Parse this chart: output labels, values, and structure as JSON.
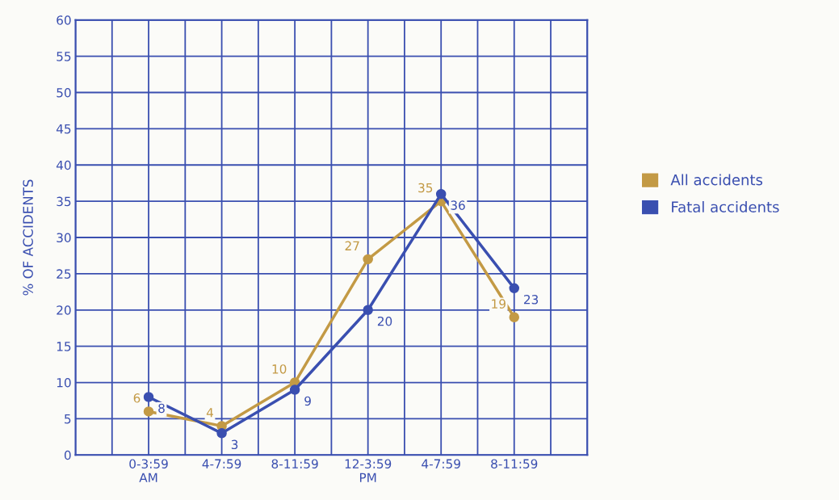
{
  "chart_data": {
    "type": "line",
    "ylabel": "% OF ACCIDENTS",
    "categories": [
      "0-3:59\nAM",
      "4-7:59",
      "8-11:59",
      "12-3:59\nPM",
      "4-7:59",
      "8-11:59"
    ],
    "series": [
      {
        "name": "All accidents",
        "color": "#c39a45",
        "values": [
          6,
          4,
          10,
          27,
          35,
          19
        ]
      },
      {
        "name": "Fatal accidents",
        "color": "#3a4fb0",
        "values": [
          8,
          3,
          9,
          20,
          36,
          23
        ]
      }
    ],
    "ylim": [
      0,
      60
    ],
    "yticks": [
      0,
      5,
      10,
      15,
      20,
      25,
      30,
      35,
      40,
      45,
      50,
      55,
      60
    ],
    "grid": true,
    "legend": "right",
    "marker": "circle",
    "line_style": "solid",
    "data_labels": true
  }
}
